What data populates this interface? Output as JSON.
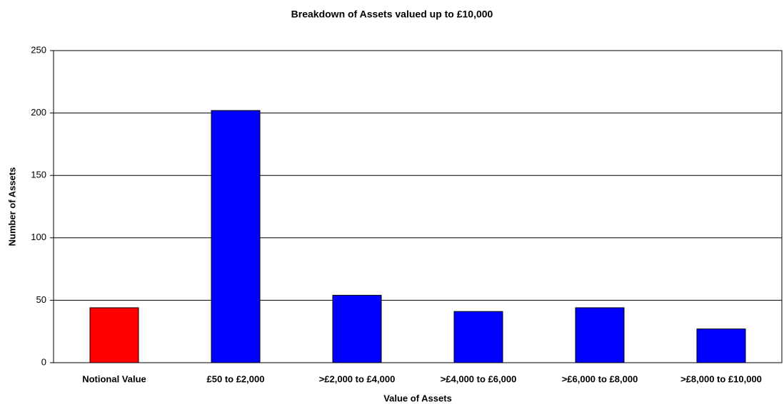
{
  "chart_data": {
    "type": "bar",
    "title": "Breakdown of Assets valued up to £10,000",
    "x_label": "Value of Assets",
    "y_label": "Number of Assets",
    "categories": [
      "Notional Value",
      "£50 to £2,000",
      ">£2,000 to £4,000",
      ">£4,000 to £6,000",
      ">£6,000 to £8,000",
      ">£8,000 to £10,000"
    ],
    "values": [
      44,
      202,
      54,
      41,
      44,
      27
    ],
    "colors": [
      "#ff0000",
      "#0000ff",
      "#0000ff",
      "#0000ff",
      "#0000ff",
      "#0000ff"
    ],
    "ylim": [
      0,
      250
    ],
    "yticks": [
      0,
      50,
      100,
      150,
      200,
      250
    ],
    "grid": true
  }
}
